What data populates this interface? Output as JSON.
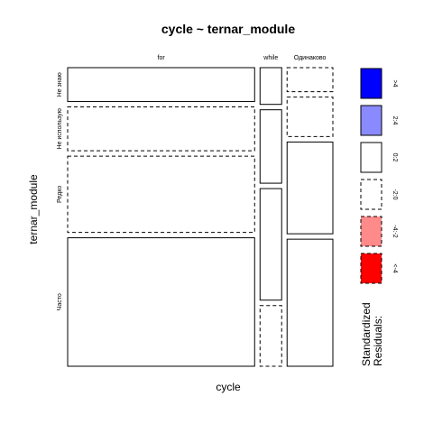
{
  "chart_data": {
    "type": "mosaic",
    "title": "cycle ~ ternar_module",
    "xlabel": "cycle",
    "ylabel": "ternar_module",
    "x_categories": [
      "for",
      "while",
      "Одинаково"
    ],
    "y_categories": [
      "Не знаю",
      "Не использую",
      "Редко",
      "Часто"
    ],
    "column_proportions": [
      0.735,
      0.085,
      0.18
    ],
    "cells": [
      {
        "column": "for",
        "conditional_proportions": [
          0.12,
          0.155,
          0.27,
          0.455
        ],
        "residual_class": [
          "0:2",
          "-2:0",
          "-2:0",
          "0:2"
        ]
      },
      {
        "column": "while",
        "conditional_proportions": [
          0.13,
          0.26,
          0.395,
          0.215
        ],
        "residual_class": [
          "0:2",
          "0:2",
          "0:2",
          "-2:0"
        ]
      },
      {
        "column": "Одинаково",
        "conditional_proportions": [
          0.085,
          0.14,
          0.325,
          0.45
        ],
        "residual_class": [
          "-2:0",
          "-2:0",
          "0:2",
          "0:2"
        ]
      }
    ],
    "legend": {
      "title_line1": "Standardized",
      "title_line2": "Residuals:",
      "position": "right",
      "entries": [
        {
          "label": ">4",
          "color": "#0000ff",
          "dashed": false
        },
        {
          "label": "2:4",
          "color": "#8a8aff",
          "dashed": false
        },
        {
          "label": "0:2",
          "color": "#ffffff",
          "dashed": false
        },
        {
          "label": "-2:0",
          "color": "#ffffff",
          "dashed": true
        },
        {
          "label": "-4:-2",
          "color": "#ff8a8a",
          "dashed": true
        },
        {
          "label": "<-4",
          "color": "#ff0000",
          "dashed": true
        }
      ]
    }
  }
}
